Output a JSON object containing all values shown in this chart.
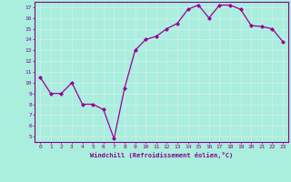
{
  "x": [
    0,
    1,
    2,
    3,
    4,
    5,
    6,
    7,
    8,
    9,
    10,
    11,
    12,
    13,
    14,
    15,
    16,
    17,
    18,
    19,
    20,
    21,
    22,
    23
  ],
  "y": [
    10.5,
    9.0,
    9.0,
    10.0,
    8.0,
    8.0,
    7.5,
    4.8,
    9.5,
    13.0,
    14.0,
    14.3,
    15.0,
    15.5,
    16.8,
    17.2,
    16.0,
    17.2,
    17.2,
    16.8,
    15.3,
    15.2,
    15.0,
    13.8
  ],
  "line_color": "#990099",
  "marker": "D",
  "markersize": 2,
  "linewidth": 0.9,
  "xlabel": "Windchill (Refroidissement éolien,°C)",
  "xlim": [
    -0.5,
    23.5
  ],
  "ylim": [
    4.5,
    17.5
  ],
  "yticks": [
    5,
    6,
    7,
    8,
    9,
    10,
    11,
    12,
    13,
    14,
    15,
    16,
    17
  ],
  "xticks": [
    0,
    1,
    2,
    3,
    4,
    5,
    6,
    7,
    8,
    9,
    10,
    11,
    12,
    13,
    14,
    15,
    16,
    17,
    18,
    19,
    20,
    21,
    22,
    23
  ],
  "bg_color": "#aaeedd",
  "grid_color": "#cceeee",
  "tick_color": "#880088",
  "label_color": "#880088",
  "spine_color": "#880088"
}
